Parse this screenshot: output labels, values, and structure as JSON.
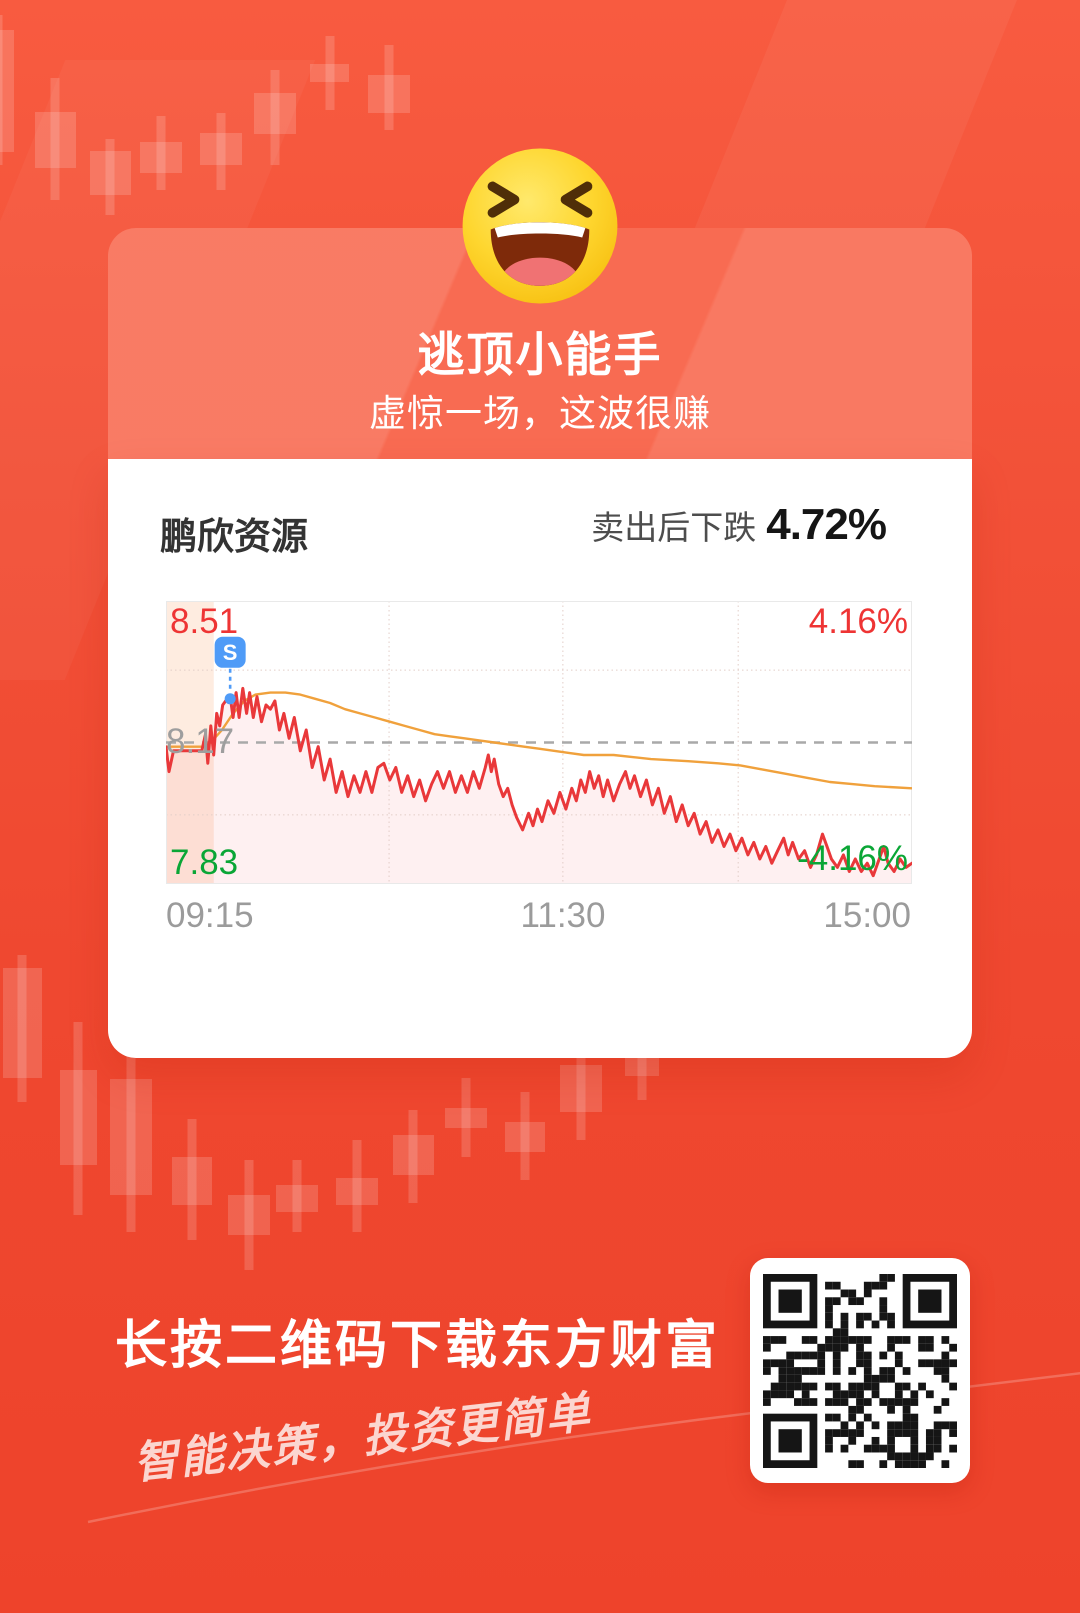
{
  "card": {
    "emoji": "laughing-squint-emoji",
    "title": "逃顶小能手",
    "subtitle": "虚惊一场，这波很赚",
    "stock": {
      "name": "鹏欣资源",
      "action_text": "卖出后下跌",
      "action_pct": "4.72%"
    }
  },
  "chart_data": {
    "type": "line",
    "ylim": [
      7.83,
      8.51
    ],
    "prev_close": 8.17,
    "y_labels": {
      "high_price": "8.51",
      "mid_price": "8.17",
      "low_price": "7.83",
      "high_pct": "4.16%",
      "low_pct": "-4.16%"
    },
    "x_ticks": [
      "09:15",
      "11:30",
      "15:00"
    ],
    "sell_marker": {
      "label": "S",
      "x": 0.086,
      "price": 8.275
    },
    "grid": {
      "v_lines": [
        0.299,
        0.532,
        0.767
      ],
      "h_lines": [
        8.344,
        7.996
      ],
      "auction_band": [
        0,
        0.064
      ]
    },
    "legend_position": "none",
    "series": [
      {
        "name": "price",
        "color": "#e9383a",
        "points": [
          [
            0,
            8.16
          ],
          [
            0.004,
            8.1
          ],
          [
            0.01,
            8.15
          ],
          [
            0.016,
            8.15
          ],
          [
            0.03,
            8.15
          ],
          [
            0.048,
            8.15
          ],
          [
            0.053,
            8.19
          ],
          [
            0.056,
            8.12
          ],
          [
            0.06,
            8.21
          ],
          [
            0.064,
            8.14
          ],
          [
            0.068,
            8.24
          ],
          [
            0.072,
            8.21
          ],
          [
            0.076,
            8.26
          ],
          [
            0.08,
            8.27
          ],
          [
            0.086,
            8.28
          ],
          [
            0.09,
            8.23
          ],
          [
            0.094,
            8.29
          ],
          [
            0.098,
            8.23
          ],
          [
            0.103,
            8.3
          ],
          [
            0.108,
            8.24
          ],
          [
            0.112,
            8.29
          ],
          [
            0.117,
            8.23
          ],
          [
            0.122,
            8.28
          ],
          [
            0.128,
            8.22
          ],
          [
            0.134,
            8.26
          ],
          [
            0.14,
            8.25
          ],
          [
            0.146,
            8.27
          ],
          [
            0.152,
            8.2
          ],
          [
            0.158,
            8.24
          ],
          [
            0.165,
            8.18
          ],
          [
            0.172,
            8.23
          ],
          [
            0.18,
            8.15
          ],
          [
            0.188,
            8.2
          ],
          [
            0.196,
            8.11
          ],
          [
            0.204,
            8.16
          ],
          [
            0.212,
            8.08
          ],
          [
            0.22,
            8.13
          ],
          [
            0.228,
            8.05
          ],
          [
            0.236,
            8.1
          ],
          [
            0.244,
            8.04
          ],
          [
            0.252,
            8.09
          ],
          [
            0.26,
            8.05
          ],
          [
            0.268,
            8.1
          ],
          [
            0.276,
            8.05
          ],
          [
            0.284,
            8.11
          ],
          [
            0.292,
            8.12
          ],
          [
            0.3,
            8.08
          ],
          [
            0.308,
            8.11
          ],
          [
            0.316,
            8.05
          ],
          [
            0.324,
            8.09
          ],
          [
            0.332,
            8.04
          ],
          [
            0.34,
            8.08
          ],
          [
            0.348,
            8.03
          ],
          [
            0.356,
            8.07
          ],
          [
            0.364,
            8.1
          ],
          [
            0.372,
            8.06
          ],
          [
            0.38,
            8.1
          ],
          [
            0.388,
            8.05
          ],
          [
            0.396,
            8.09
          ],
          [
            0.404,
            8.05
          ],
          [
            0.412,
            8.1
          ],
          [
            0.42,
            8.06
          ],
          [
            0.428,
            8.11
          ],
          [
            0.432,
            8.14
          ],
          [
            0.436,
            8.1
          ],
          [
            0.44,
            8.13
          ],
          [
            0.446,
            8.07
          ],
          [
            0.452,
            8.04
          ],
          [
            0.458,
            8.06
          ],
          [
            0.464,
            8.02
          ],
          [
            0.47,
            7.99
          ],
          [
            0.478,
            7.96
          ],
          [
            0.486,
            8.0
          ],
          [
            0.492,
            7.97
          ],
          [
            0.498,
            8.01
          ],
          [
            0.504,
            7.98
          ],
          [
            0.512,
            8.03
          ],
          [
            0.52,
            8.0
          ],
          [
            0.528,
            8.05
          ],
          [
            0.536,
            8.01
          ],
          [
            0.544,
            8.06
          ],
          [
            0.55,
            8.03
          ],
          [
            0.556,
            8.08
          ],
          [
            0.562,
            8.05
          ],
          [
            0.568,
            8.1
          ],
          [
            0.574,
            8.06
          ],
          [
            0.58,
            8.09
          ],
          [
            0.586,
            8.04
          ],
          [
            0.592,
            8.08
          ],
          [
            0.6,
            8.03
          ],
          [
            0.608,
            8.07
          ],
          [
            0.616,
            8.1
          ],
          [
            0.622,
            8.06
          ],
          [
            0.628,
            8.09
          ],
          [
            0.636,
            8.04
          ],
          [
            0.644,
            8.08
          ],
          [
            0.652,
            8.02
          ],
          [
            0.66,
            8.06
          ],
          [
            0.668,
            8.0
          ],
          [
            0.676,
            8.04
          ],
          [
            0.684,
            7.98
          ],
          [
            0.692,
            8.02
          ],
          [
            0.7,
            7.97
          ],
          [
            0.708,
            8.0
          ],
          [
            0.716,
            7.95
          ],
          [
            0.724,
            7.98
          ],
          [
            0.732,
            7.93
          ],
          [
            0.74,
            7.96
          ],
          [
            0.748,
            7.92
          ],
          [
            0.756,
            7.95
          ],
          [
            0.764,
            7.91
          ],
          [
            0.772,
            7.94
          ],
          [
            0.78,
            7.9
          ],
          [
            0.788,
            7.93
          ],
          [
            0.796,
            7.89
          ],
          [
            0.804,
            7.92
          ],
          [
            0.812,
            7.88
          ],
          [
            0.82,
            7.91
          ],
          [
            0.828,
            7.94
          ],
          [
            0.834,
            7.9
          ],
          [
            0.84,
            7.93
          ],
          [
            0.848,
            7.89
          ],
          [
            0.856,
            7.91
          ],
          [
            0.864,
            7.87
          ],
          [
            0.872,
            7.9
          ],
          [
            0.88,
            7.95
          ],
          [
            0.886,
            7.92
          ],
          [
            0.892,
            7.89
          ],
          [
            0.9,
            7.87
          ],
          [
            0.908,
            7.9
          ],
          [
            0.916,
            7.86
          ],
          [
            0.924,
            7.89
          ],
          [
            0.932,
            7.86
          ],
          [
            0.94,
            7.88
          ],
          [
            0.948,
            7.85
          ],
          [
            0.956,
            7.89
          ],
          [
            0.962,
            7.92
          ],
          [
            0.968,
            7.88
          ],
          [
            0.976,
            7.86
          ],
          [
            0.984,
            7.89
          ],
          [
            0.992,
            7.87
          ],
          [
            1.0,
            7.88
          ]
        ]
      },
      {
        "name": "avg",
        "color": "#f0a13c",
        "points": [
          [
            0,
            8.16
          ],
          [
            0.03,
            8.16
          ],
          [
            0.048,
            8.16
          ],
          [
            0.06,
            8.17
          ],
          [
            0.075,
            8.2
          ],
          [
            0.09,
            8.24
          ],
          [
            0.105,
            8.27
          ],
          [
            0.12,
            8.285
          ],
          [
            0.14,
            8.29
          ],
          [
            0.16,
            8.29
          ],
          [
            0.18,
            8.285
          ],
          [
            0.2,
            8.275
          ],
          [
            0.22,
            8.265
          ],
          [
            0.24,
            8.25
          ],
          [
            0.26,
            8.24
          ],
          [
            0.28,
            8.23
          ],
          [
            0.3,
            8.22
          ],
          [
            0.32,
            8.21
          ],
          [
            0.34,
            8.2
          ],
          [
            0.36,
            8.19
          ],
          [
            0.38,
            8.185
          ],
          [
            0.4,
            8.18
          ],
          [
            0.42,
            8.175
          ],
          [
            0.44,
            8.17
          ],
          [
            0.46,
            8.165
          ],
          [
            0.48,
            8.16
          ],
          [
            0.5,
            8.155
          ],
          [
            0.52,
            8.15
          ],
          [
            0.54,
            8.145
          ],
          [
            0.56,
            8.14
          ],
          [
            0.58,
            8.14
          ],
          [
            0.6,
            8.14
          ],
          [
            0.65,
            8.13
          ],
          [
            0.7,
            8.125
          ],
          [
            0.74,
            8.12
          ],
          [
            0.77,
            8.115
          ],
          [
            0.8,
            8.105
          ],
          [
            0.83,
            8.095
          ],
          [
            0.86,
            8.085
          ],
          [
            0.89,
            8.075
          ],
          [
            0.92,
            8.07
          ],
          [
            0.95,
            8.065
          ],
          [
            1.0,
            8.06
          ]
        ]
      }
    ]
  },
  "footer": {
    "cta": "长按二维码下载东方财富",
    "slogan": "智能决策，投资更简单",
    "qr_alt": "download-qr-code"
  },
  "colors": {
    "background": "#ef4830",
    "card_header": "#f86247",
    "up_red": "#ee3434",
    "down_green": "#0aa636",
    "neutral_gray": "#9e9e9e",
    "price_line": "#e9383a",
    "avg_line": "#f0a13c",
    "sell_marker_blue": "#4f9bf7"
  }
}
